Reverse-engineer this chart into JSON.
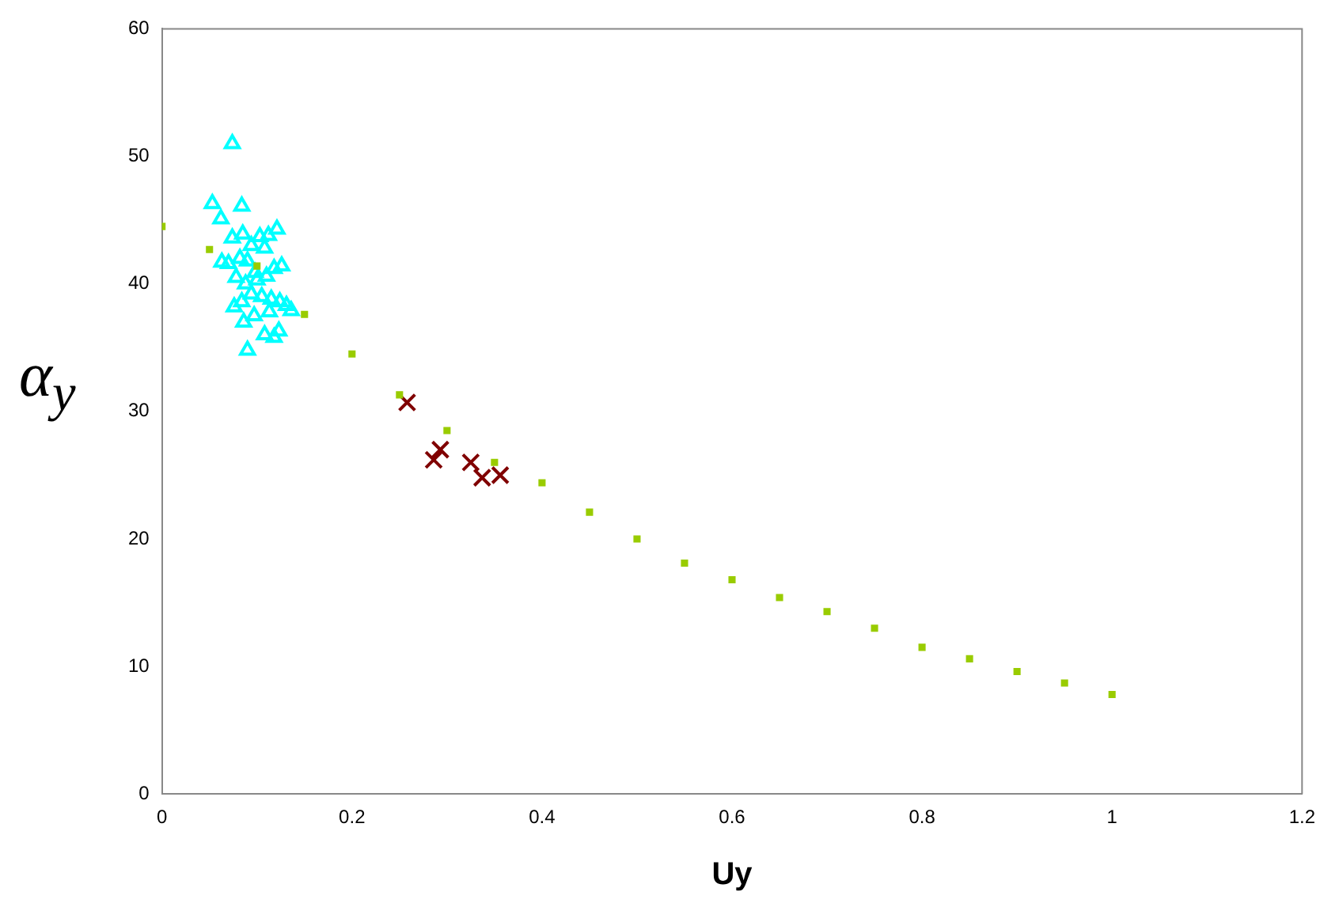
{
  "chart_data": {
    "type": "scatter",
    "xlabel": "Uy",
    "ylabel": "α$_{y}$",
    "xlim": [
      0,
      1.2
    ],
    "xticks": [
      0,
      0.2,
      0.4,
      0.6,
      0.8,
      1,
      1.2
    ],
    "ylim": [
      0,
      60
    ],
    "yticks": [
      0,
      10,
      20,
      30,
      40,
      50,
      60
    ],
    "grid": false,
    "legend": false,
    "series": [
      {
        "color": "#99cc00",
        "marker": "square",
        "x": [
          0,
          0.05,
          0.1,
          0.15,
          0.2,
          0.25,
          0.3,
          0.35,
          0.4,
          0.45,
          0.5,
          0.55,
          0.6,
          0.65,
          0.7,
          0.75,
          0.8,
          0.85,
          0.9,
          0.95,
          1
        ],
        "values": [
          44.5,
          42.7,
          41.4,
          37.6,
          34.5,
          31.3,
          28.5,
          26,
          24.4,
          22.1,
          20,
          18.1,
          16.8,
          15.4,
          14.3,
          13,
          11.5,
          10.6,
          9.6,
          8.7,
          7.8
        ]
      },
      {
        "color": "#00ffff",
        "marker": "triangle",
        "x": [
          0.074,
          0.053,
          0.084,
          0.062,
          0.074,
          0.085,
          0.094,
          0.103,
          0.112,
          0.121,
          0.108,
          0.082,
          0.07,
          0.09,
          0.098,
          0.063,
          0.078,
          0.088,
          0.1,
          0.11,
          0.118,
          0.126,
          0.094,
          0.105,
          0.115,
          0.084,
          0.076,
          0.124,
          0.131,
          0.097,
          0.113,
          0.086,
          0.108,
          0.118,
          0.123,
          0.09,
          0.136
        ],
        "values": [
          51,
          46.3,
          46.1,
          45.1,
          43.6,
          43.9,
          43,
          43.7,
          43.8,
          44.3,
          42.8,
          42,
          41.6,
          41.8,
          40.9,
          41.7,
          40.5,
          40,
          40.3,
          40.6,
          41.2,
          41.4,
          39.2,
          39,
          38.8,
          38.6,
          38.2,
          38.6,
          38.3,
          37.5,
          37.8,
          37,
          36,
          35.8,
          36.3,
          34.8,
          37.9
        ]
      },
      {
        "color": "#800000",
        "marker": "cross",
        "x": [
          0.258,
          0.293,
          0.286,
          0.325,
          0.337,
          0.356
        ],
        "values": [
          30.7,
          27,
          26.2,
          26,
          24.8,
          25
        ]
      }
    ]
  }
}
